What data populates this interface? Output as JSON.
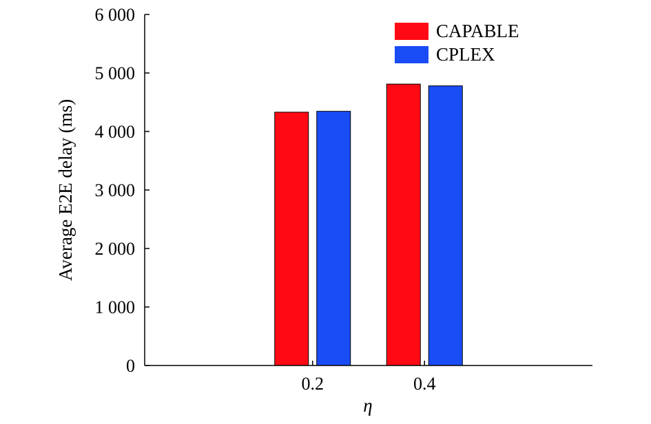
{
  "chart_data": {
    "type": "bar",
    "categories": [
      "0.2",
      "0.4"
    ],
    "series": [
      {
        "name": "CAPABLE",
        "color": "#ff0a14",
        "values": [
          4330,
          4810
        ]
      },
      {
        "name": "CPLEX",
        "color": "#1a4cf5",
        "values": [
          4345,
          4780
        ]
      }
    ],
    "xlabel": "η",
    "ylabel": "Average E2E delay (ms)",
    "ylim": [
      0,
      6000
    ],
    "yticks": [
      0,
      1000,
      2000,
      3000,
      4000,
      5000,
      6000
    ],
    "ytick_labels": [
      "0",
      "1 000",
      "2 000",
      "3 000",
      "4 000",
      "5 000",
      "6 000"
    ],
    "xlim": [
      -0.1,
      0.7
    ],
    "grid": false,
    "legend_position": "top-right"
  }
}
